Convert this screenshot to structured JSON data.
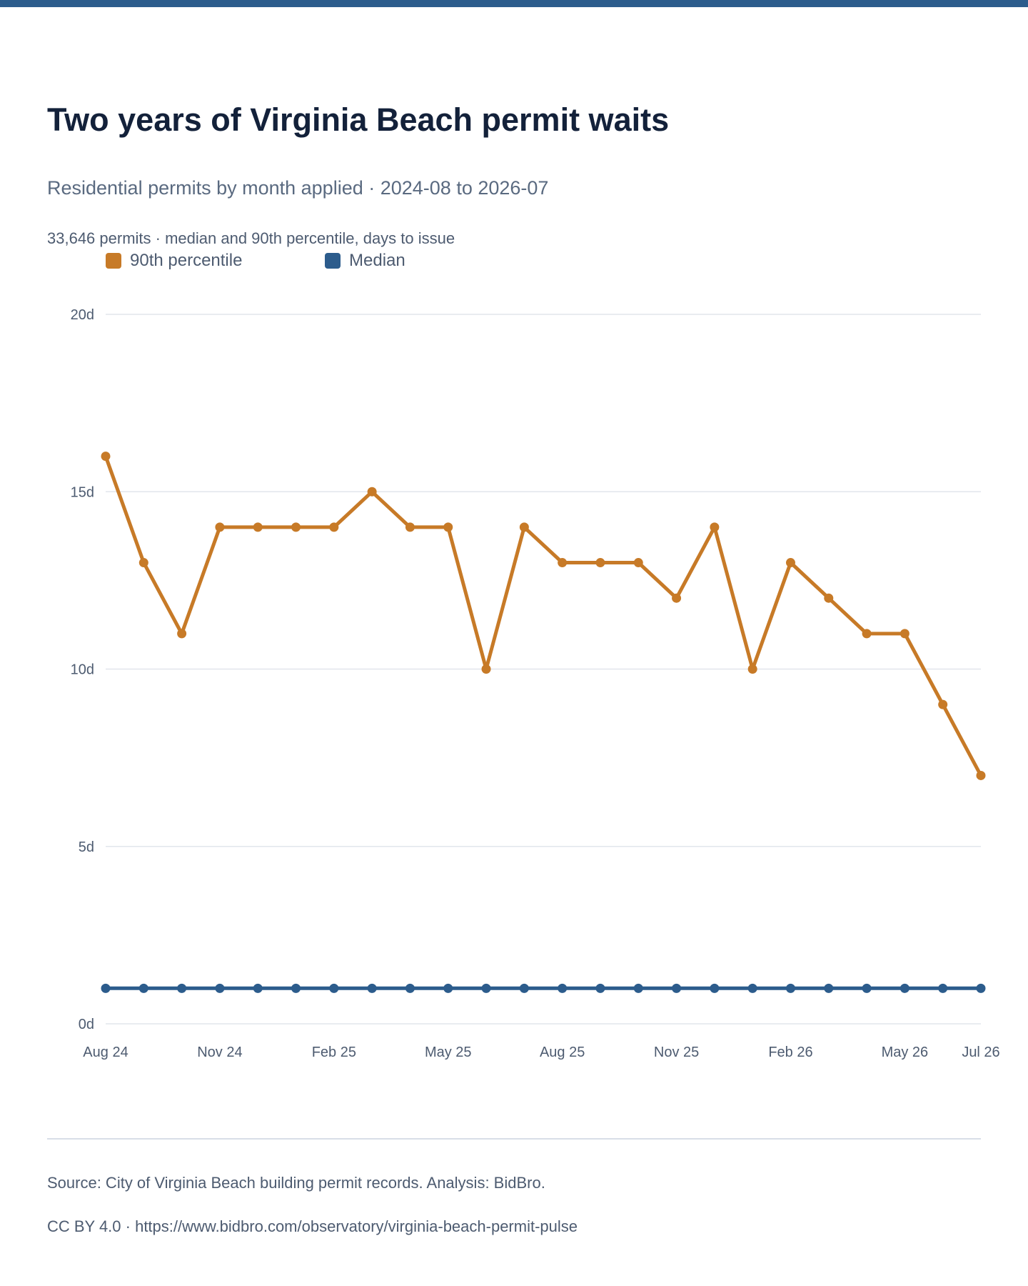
{
  "header": {
    "title": "Two years of Virginia Beach permit waits",
    "subtitle": "Residential permits by month applied · 2024-08 to 2026-07",
    "note": "33,646 permits · median and 90th percentile, days to issue"
  },
  "footer": {
    "source": "Source: City of Virginia Beach building permit records. Analysis: BidBro.",
    "license": "CC BY 4.0 · https://www.bidbro.com/observatory/virginia-beach-permit-pulse"
  },
  "colors": {
    "accent_bar": "#2c5c8c",
    "p90": "#c77a27",
    "median": "#2c5c8c",
    "grid": "#e2e6ec"
  },
  "chart_data": {
    "type": "line",
    "x": [
      "2024-08",
      "2024-09",
      "2024-10",
      "2024-11",
      "2024-12",
      "2025-01",
      "2025-02",
      "2025-03",
      "2025-04",
      "2025-05",
      "2025-06",
      "2025-07",
      "2025-08",
      "2025-09",
      "2025-10",
      "2025-11",
      "2025-12",
      "2026-01",
      "2026-02",
      "2026-03",
      "2026-04",
      "2026-05",
      "2026-06",
      "2026-07"
    ],
    "x_tick_labels": [
      {
        "index": 0,
        "label": "Aug 24"
      },
      {
        "index": 3,
        "label": "Nov 24"
      },
      {
        "index": 6,
        "label": "Feb 25"
      },
      {
        "index": 9,
        "label": "May 25"
      },
      {
        "index": 12,
        "label": "Aug 25"
      },
      {
        "index": 15,
        "label": "Nov 25"
      },
      {
        "index": 18,
        "label": "Feb 26"
      },
      {
        "index": 21,
        "label": "May 26"
      },
      {
        "index": 23,
        "label": "Jul 26"
      }
    ],
    "series": [
      {
        "name": "90th percentile",
        "color": "#c77a27",
        "values": [
          16,
          13,
          11,
          14,
          14,
          14,
          14,
          15,
          14,
          14,
          10,
          14,
          13,
          13,
          13,
          12,
          14,
          10,
          13,
          12,
          11,
          11,
          9,
          7
        ]
      },
      {
        "name": "Median",
        "color": "#2c5c8c",
        "values": [
          1,
          1,
          1,
          1,
          1,
          1,
          1,
          1,
          1,
          1,
          1,
          1,
          1,
          1,
          1,
          1,
          1,
          1,
          1,
          1,
          1,
          1,
          1,
          1
        ]
      }
    ],
    "y_ticks": [
      0,
      5,
      10,
      15,
      20
    ],
    "y_tick_suffix": "d",
    "ylim": [
      0,
      20
    ],
    "grid": true,
    "legend_position": "top-left"
  }
}
